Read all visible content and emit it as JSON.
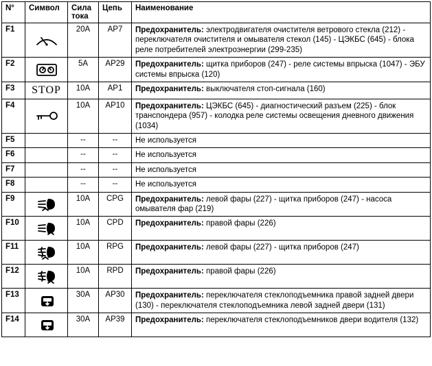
{
  "headers": {
    "num": "N°",
    "symbol": "Символ",
    "current": "Сила тока",
    "circuit": "Цепь",
    "name": "Наименование"
  },
  "fuse_prefix": "Предохранитель:",
  "unused_text": "Не используется",
  "dash": "--",
  "stop_label": "STOP",
  "rows": [
    {
      "num": "F1",
      "symbol": "wiper",
      "current": "20A",
      "circuit": "AP7",
      "desc": "электродвигателя очистителя ветрового стекла (212) - переключателя очистителя и омывателя стекол (145) - ЦЭКБС (645) - блока реле потребителей электроэнергии (299-235)"
    },
    {
      "num": "F2",
      "symbol": "dashboard",
      "current": "5A",
      "circuit": "AP29",
      "desc": "щитка приборов (247) - реле системы впрыска (1047) - ЭБУ системы впрыска (120)"
    },
    {
      "num": "F3",
      "symbol": "stop-text",
      "current": "10A",
      "circuit": "AP1",
      "desc": "выключателя стоп-сигнала (160)"
    },
    {
      "num": "F4",
      "symbol": "key",
      "current": "10A",
      "circuit": "AP10",
      "desc": "ЦЭКБС (645) - диагностический разъем (225) - блок транспондера (957) - колодка реле системы освещения дневного движения (1034)"
    },
    {
      "num": "F5",
      "symbol": "",
      "current": "--",
      "circuit": "--",
      "desc": "",
      "unused": true
    },
    {
      "num": "F6",
      "symbol": "",
      "current": "--",
      "circuit": "--",
      "desc": "",
      "unused": true
    },
    {
      "num": "F7",
      "symbol": "",
      "current": "--",
      "circuit": "--",
      "desc": "",
      "unused": true
    },
    {
      "num": "F8",
      "symbol": "",
      "current": "--",
      "circuit": "--",
      "desc": "",
      "unused": true
    },
    {
      "num": "F9",
      "symbol": "beam-left-wash",
      "current": "10A",
      "circuit": "CPG",
      "desc": "левой фары (227) - щитка приборов (247) - насоса омывателя фар (219)"
    },
    {
      "num": "F10",
      "symbol": "beam-right",
      "current": "10A",
      "circuit": "CPD",
      "desc": "правой фары (226)"
    },
    {
      "num": "F11",
      "symbol": "fog-left",
      "current": "10A",
      "circuit": "RPG",
      "desc": "левой фары (227) - щитка приборов (247)"
    },
    {
      "num": "F12",
      "symbol": "fog-right",
      "current": "10A",
      "circuit": "RPD",
      "desc": "правой фары (226)"
    },
    {
      "num": "F13",
      "symbol": "window-rear",
      "current": "30A",
      "circuit": "AP30",
      "desc": "переключателя стеклоподъемника правой задней двери (130) - переключателя стеклоподъемника левой задней двери (131)"
    },
    {
      "num": "F14",
      "symbol": "window-driver",
      "current": "30A",
      "circuit": "AP39",
      "desc": "переключателя стеклоподъемников двери водителя (132)"
    }
  ]
}
